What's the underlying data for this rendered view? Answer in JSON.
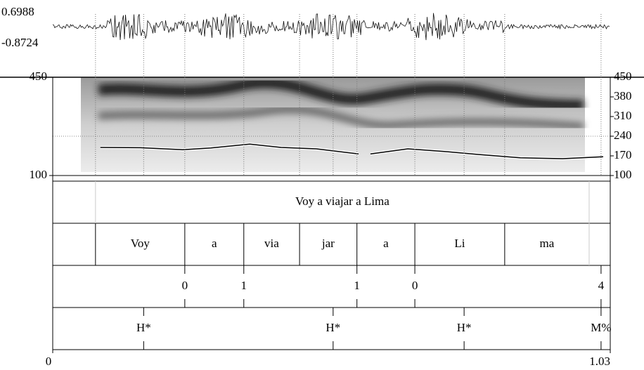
{
  "waveform": {
    "yticks": [
      0.6988,
      -0.8724
    ]
  },
  "pitch": {
    "ylim": [
      100,
      450
    ],
    "left_ticks": [
      450,
      100
    ],
    "yticks": [
      450,
      380,
      310,
      240,
      170,
      100
    ],
    "x": [
      0.088,
      0.162,
      0.24,
      0.292,
      0.364,
      0.422,
      0.487,
      0.565,
      0.576,
      0.587,
      0.656,
      0.721,
      0.786,
      0.864,
      0.942,
      1.017
    ],
    "values": [
      200,
      199,
      192,
      198,
      212,
      200,
      195,
      177,
      null,
      177,
      195,
      186,
      175,
      163,
      160,
      167
    ]
  },
  "tiers": [
    {
      "intervals": [
        {
          "text": "Voy a viajar a Lima",
          "start": 0.079,
          "end": 0.991
        }
      ]
    },
    {
      "intervals": [
        {
          "text": "Voy",
          "start": 0.079,
          "end": 0.244
        },
        {
          "text": "a",
          "start": 0.244,
          "end": 0.353
        },
        {
          "text": "via",
          "start": 0.353,
          "end": 0.456
        },
        {
          "text": "jar",
          "start": 0.456,
          "end": 0.562
        },
        {
          "text": "a",
          "start": 0.562,
          "end": 0.669
        },
        {
          "text": "Li",
          "start": 0.669,
          "end": 0.835
        },
        {
          "text": "ma",
          "start": 0.835,
          "end": 0.991
        }
      ]
    },
    {
      "points": [
        {
          "text": "0",
          "time": 0.244
        },
        {
          "text": "1",
          "time": 0.353
        },
        {
          "text": "1",
          "time": 0.562
        },
        {
          "text": "0",
          "time": 0.669
        },
        {
          "text": "4",
          "time": 1.013
        }
      ]
    },
    {
      "points": [
        {
          "text": "H*",
          "time": 0.168
        },
        {
          "text": "H*",
          "time": 0.518
        },
        {
          "text": "H*",
          "time": 0.76
        },
        {
          "text": "M%",
          "time": 1.013
        }
      ]
    }
  ],
  "time_axis": {
    "xlim": [
      0,
      1.03
    ],
    "xticks": [
      0,
      1.03
    ]
  }
}
